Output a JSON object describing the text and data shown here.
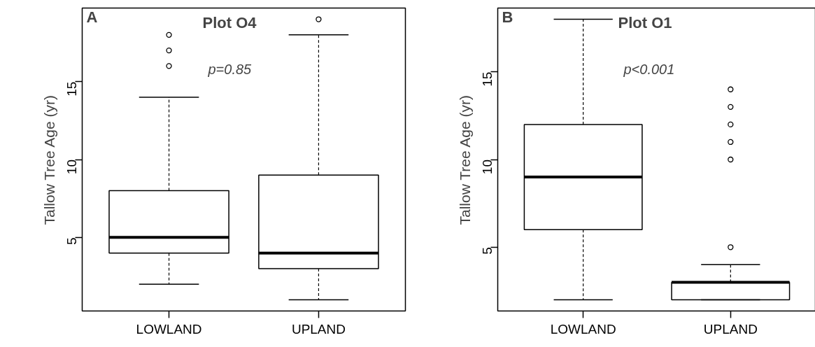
{
  "chart_data": [
    {
      "type": "box",
      "title": "Plot O4",
      "ylabel": "Tallow Tree Age (yr)",
      "annotations": [
        "A",
        "p=0.85"
      ],
      "categories": [
        "LOWLAND",
        "UPLAND"
      ],
      "boxes": [
        {
          "low": 2,
          "q1": 4,
          "median": 5,
          "q3": 8,
          "high": 14,
          "outliers": [
            16,
            17,
            18
          ]
        },
        {
          "low": 1,
          "q1": 3,
          "median": 4,
          "q3": 9,
          "high": 18,
          "outliers": [
            19
          ]
        }
      ],
      "ylim": [
        0.28,
        19.72
      ],
      "yticks": [
        5,
        10,
        15
      ],
      "grid": false,
      "color": "#ffffff"
    },
    {
      "type": "box",
      "title": "Plot O1",
      "ylabel": "Tallow Tree Age (yr)",
      "annotations": [
        "B",
        "p<0.001"
      ],
      "categories": [
        "LOWLAND",
        "UPLAND"
      ],
      "boxes": [
        {
          "low": 2,
          "q1": 6,
          "median": 9,
          "q3": 12,
          "high": 18
        },
        {
          "low": 2,
          "q1": 2,
          "median": 3,
          "q3": 3,
          "high": 4,
          "outliers": [
            5,
            10,
            11,
            12,
            13,
            14
          ]
        }
      ],
      "ylim": [
        1.36,
        18.64
      ],
      "yticks": [
        5,
        10,
        15
      ],
      "grid": false,
      "color": "#ffffff"
    }
  ]
}
